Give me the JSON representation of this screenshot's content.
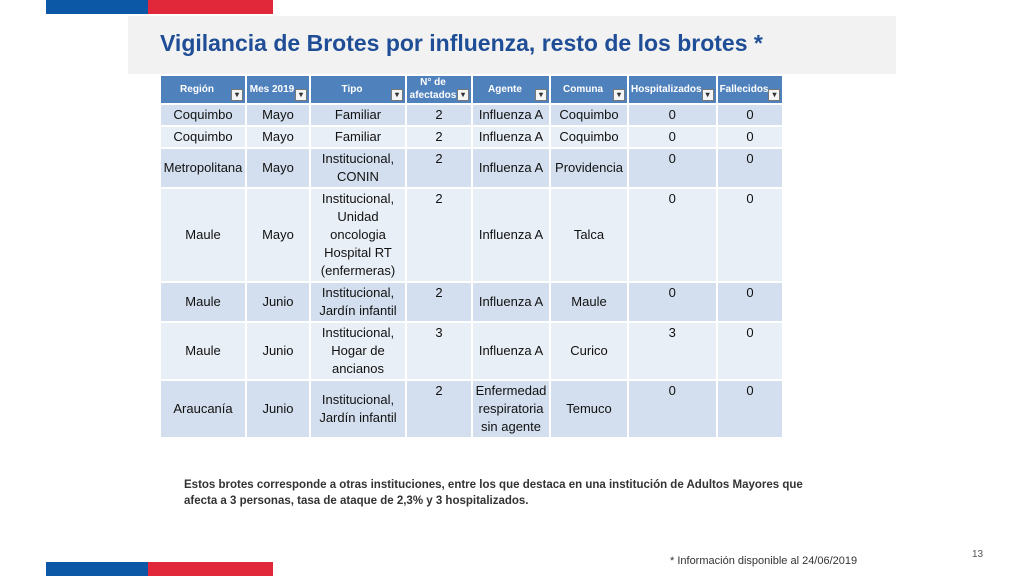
{
  "title": "Vigilancia  de Brotes  por influenza, resto de los brotes *",
  "table": {
    "headers": [
      {
        "label": "Región",
        "filter": "▾"
      },
      {
        "label": "Mes 2019",
        "filter": "▾"
      },
      {
        "label": "Tipo",
        "filter": "▾"
      },
      {
        "label": "N° de afectados",
        "filter": "▾"
      },
      {
        "label": "Agente",
        "filter": "▾"
      },
      {
        "label": "Comuna",
        "filter": "▾"
      },
      {
        "label": "Hospitalizados",
        "filter": "▾"
      },
      {
        "label": "Fallecidos",
        "filter": "▾"
      }
    ],
    "rows": [
      [
        "Coquimbo",
        "Mayo",
        "Familiar",
        "2",
        "Influenza A",
        "Coquimbo",
        "0",
        "0"
      ],
      [
        "Coquimbo",
        "Mayo",
        "Familiar",
        "2",
        "Influenza A",
        "Coquimbo",
        "0",
        "0"
      ],
      [
        "Metropolitana",
        "Mayo",
        "Institucional, CONIN",
        "2",
        "Influenza A",
        "Providencia",
        "0",
        "0"
      ],
      [
        "Maule",
        "Mayo",
        "Institucional, Unidad oncologia Hospital RT (enfermeras)",
        "2",
        "Influenza A",
        "Talca",
        "0",
        "0"
      ],
      [
        "Maule",
        "Junio",
        "Institucional, Jardín infantil",
        "2",
        "Influenza A",
        "Maule",
        "0",
        "0"
      ],
      [
        "Maule",
        "Junio",
        "Institucional, Hogar de ancianos",
        "3",
        "Influenza A",
        "Curico",
        "3",
        "0"
      ],
      [
        "Araucanía",
        "Junio",
        "Institucional, Jardín infantil",
        "2",
        "Enfermedad respiratoria sin agente",
        "Temuco",
        "0",
        "0"
      ]
    ]
  },
  "note": "Estos brotes corresponde a otras instituciones, entre los que destaca  en una institución de Adultos Mayores  que afecta a 3 personas, tasa de ataque de 2,3%  y  3 hospitalizados.",
  "source": "* Información disponible al 24/06/2019",
  "page_number": "13",
  "colors": {
    "title": "#1f4e96",
    "header_bg": "#4f81bd",
    "row_bg": "#d3dfee",
    "row_alt_bg": "#e9eff7",
    "flag_blue": "#0c57a6",
    "flag_red": "#e0283a"
  }
}
